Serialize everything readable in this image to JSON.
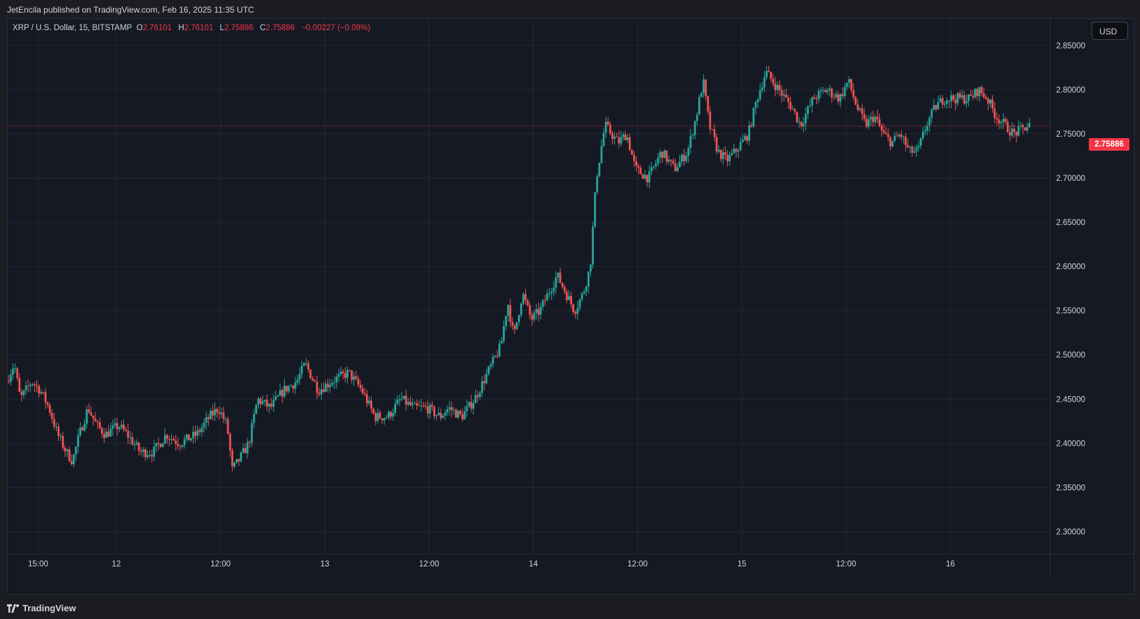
{
  "header": {
    "published_text": "JetEncila published on TradingView.com, Feb 16, 2025 11:35 UTC"
  },
  "legend": {
    "symbol": "XRP / U.S. Dollar, 15, BITSTAMP",
    "open_label": "O",
    "open": "2.76101",
    "high_label": "H",
    "high": "2.76101",
    "low_label": "L",
    "low": "2.75886",
    "close_label": "C",
    "close": "2.75886",
    "change": "−0.00227 (−0.08%)"
  },
  "currency_button": "USD",
  "last_price_tag": "2.75886",
  "footer": {
    "brand": "TradingView"
  },
  "colors": {
    "up": "#26a69a",
    "down": "#ef5350",
    "background": "#151924",
    "grid": "#232733",
    "price_line": "#f23645"
  },
  "chart_data": {
    "type": "candlestick",
    "title": "XRP / U.S. Dollar, 15, BITSTAMP",
    "ylim": [
      2.275,
      2.88
    ],
    "y_ticks": [
      "2.85000",
      "2.80000",
      "2.75000",
      "2.70000",
      "2.65000",
      "2.60000",
      "2.55000",
      "2.50000",
      "2.45000",
      "2.40000",
      "2.35000",
      "2.30000"
    ],
    "x_ticks": [
      "15:00",
      "12",
      "12:00",
      "13",
      "12:00",
      "14",
      "12:00",
      "15",
      "12:00",
      "16"
    ],
    "x_tick_hours": [
      15,
      24,
      36,
      48,
      60,
      72,
      84,
      96,
      108,
      120
    ],
    "x_range_hours": [
      11.5,
      131.5
    ],
    "grid": true,
    "last_price": 2.75886,
    "price_path": [
      [
        11.6,
        2.47
      ],
      [
        12.5,
        2.49
      ],
      [
        13.2,
        2.45
      ],
      [
        14.5,
        2.47
      ],
      [
        15.5,
        2.46
      ],
      [
        16.5,
        2.44
      ],
      [
        17.5,
        2.41
      ],
      [
        18.5,
        2.39
      ],
      [
        19.2,
        2.38
      ],
      [
        20.0,
        2.41
      ],
      [
        21.0,
        2.44
      ],
      [
        22.0,
        2.42
      ],
      [
        23.0,
        2.41
      ],
      [
        24.5,
        2.42
      ],
      [
        25.5,
        2.41
      ],
      [
        27.0,
        2.39
      ],
      [
        28.5,
        2.39
      ],
      [
        30.0,
        2.41
      ],
      [
        31.5,
        2.4
      ],
      [
        33.5,
        2.41
      ],
      [
        35.0,
        2.43
      ],
      [
        36.0,
        2.44
      ],
      [
        37.0,
        2.42
      ],
      [
        37.6,
        2.37
      ],
      [
        38.3,
        2.38
      ],
      [
        39.5,
        2.4
      ],
      [
        40.5,
        2.45
      ],
      [
        42.0,
        2.44
      ],
      [
        43.5,
        2.46
      ],
      [
        45.0,
        2.47
      ],
      [
        46.0,
        2.49
      ],
      [
        47.5,
        2.46
      ],
      [
        49.0,
        2.47
      ],
      [
        51.0,
        2.48
      ],
      [
        52.5,
        2.46
      ],
      [
        54.0,
        2.43
      ],
      [
        55.5,
        2.43
      ],
      [
        57.0,
        2.45
      ],
      [
        58.5,
        2.44
      ],
      [
        60.0,
        2.44
      ],
      [
        61.5,
        2.43
      ],
      [
        62.5,
        2.44
      ],
      [
        64.0,
        2.43
      ],
      [
        65.5,
        2.45
      ],
      [
        67.0,
        2.48
      ],
      [
        68.5,
        2.51
      ],
      [
        69.3,
        2.56
      ],
      [
        70.0,
        2.52
      ],
      [
        71.0,
        2.57
      ],
      [
        72.0,
        2.54
      ],
      [
        73.0,
        2.55
      ],
      [
        74.0,
        2.57
      ],
      [
        75.0,
        2.59
      ],
      [
        76.0,
        2.57
      ],
      [
        77.0,
        2.55
      ],
      [
        78.0,
        2.57
      ],
      [
        78.8,
        2.6
      ],
      [
        79.5,
        2.7
      ],
      [
        80.5,
        2.76
      ],
      [
        82.0,
        2.74
      ],
      [
        83.0,
        2.75
      ],
      [
        84.0,
        2.71
      ],
      [
        85.5,
        2.7
      ],
      [
        87.0,
        2.73
      ],
      [
        88.5,
        2.71
      ],
      [
        90.0,
        2.73
      ],
      [
        91.0,
        2.77
      ],
      [
        91.8,
        2.81
      ],
      [
        92.5,
        2.76
      ],
      [
        93.5,
        2.73
      ],
      [
        94.5,
        2.72
      ],
      [
        95.5,
        2.73
      ],
      [
        97.0,
        2.75
      ],
      [
        98.0,
        2.79
      ],
      [
        99.0,
        2.82
      ],
      [
        100.5,
        2.8
      ],
      [
        102.0,
        2.78
      ],
      [
        103.0,
        2.76
      ],
      [
        104.5,
        2.79
      ],
      [
        106.0,
        2.8
      ],
      [
        107.5,
        2.79
      ],
      [
        108.5,
        2.81
      ],
      [
        109.5,
        2.78
      ],
      [
        110.5,
        2.76
      ],
      [
        111.5,
        2.77
      ],
      [
        112.5,
        2.75
      ],
      [
        113.5,
        2.74
      ],
      [
        114.5,
        2.75
      ],
      [
        115.5,
        2.73
      ],
      [
        116.5,
        2.73
      ],
      [
        117.5,
        2.76
      ],
      [
        118.5,
        2.78
      ],
      [
        119.5,
        2.79
      ],
      [
        121.0,
        2.79
      ],
      [
        122.5,
        2.79
      ],
      [
        123.5,
        2.8
      ],
      [
        124.5,
        2.79
      ],
      [
        125.5,
        2.77
      ],
      [
        126.5,
        2.76
      ],
      [
        127.5,
        2.75
      ],
      [
        128.5,
        2.755
      ],
      [
        129.3,
        2.76
      ]
    ]
  }
}
